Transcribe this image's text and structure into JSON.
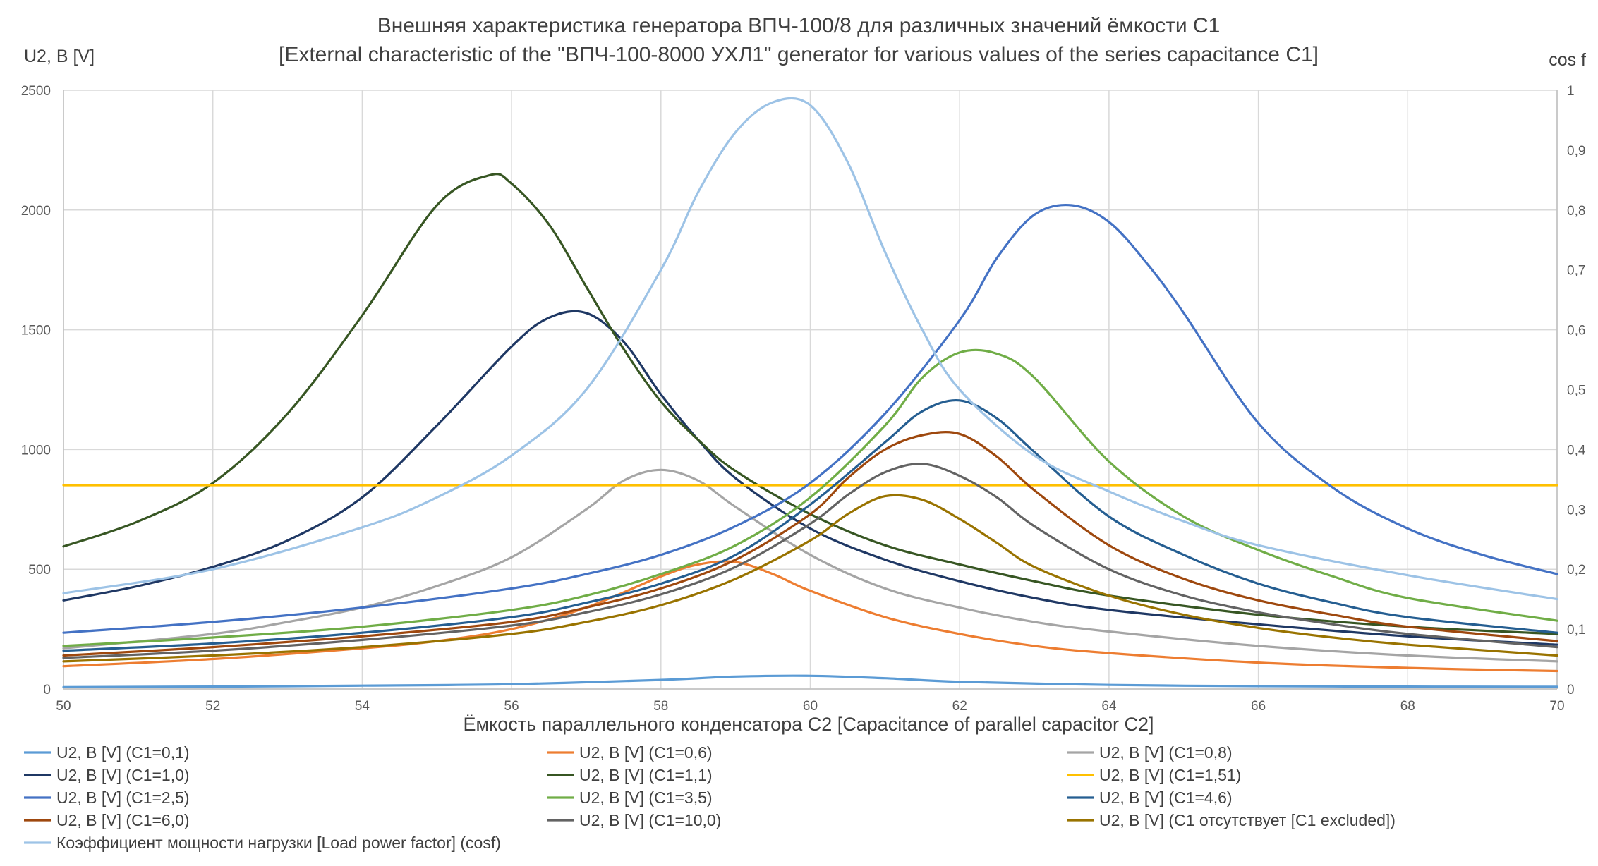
{
  "chart_data": {
    "type": "line",
    "title_line1": "Внешняя характеристика генератора ВПЧ-100/8 для различных значений ёмкости С1",
    "title_line2": "[External characteristic of the \"ВПЧ-100-8000 УХЛ1\" generator for various values of the series capacitance С1]",
    "xlabel": "Ёмкость параллельного конденсатора С2 [Capacitance of parallel capacitor C2]",
    "ylabel": "U2, В [V]",
    "y2label": "cos f",
    "xlim": [
      50,
      70
    ],
    "ylim": [
      0,
      2500
    ],
    "y2lim": [
      0,
      1
    ],
    "x_ticks": [
      "50",
      "52",
      "54",
      "56",
      "58",
      "60",
      "62",
      "64",
      "66",
      "68",
      "70"
    ],
    "y_ticks": [
      "0",
      "500",
      "1000",
      "1500",
      "2000",
      "2500"
    ],
    "y2_ticks": [
      "0",
      "0,1",
      "0,2",
      "0,3",
      "0,4",
      "0,5",
      "0,6",
      "0,7",
      "0,8",
      "0,9",
      "1"
    ],
    "grid": true,
    "legend_position": "bottom",
    "series": [
      {
        "name": "U2, В [V] (С1=0,1)",
        "color": "#5b9bd5",
        "axis": "left",
        "x": [
          50,
          52,
          54,
          56,
          58,
          59,
          60,
          61,
          62,
          64,
          66,
          68,
          70
        ],
        "y": [
          8,
          10,
          14,
          20,
          38,
          52,
          55,
          45,
          30,
          17,
          12,
          10,
          9
        ]
      },
      {
        "name": "U2, В [V] (С1=0,6)",
        "color": "#ed7d31",
        "axis": "left",
        "x": [
          50,
          52,
          54,
          55,
          56,
          57,
          58,
          58.5,
          59,
          59.5,
          60,
          61,
          62,
          63,
          64,
          66,
          68,
          70
        ],
        "y": [
          95,
          125,
          170,
          200,
          250,
          340,
          470,
          520,
          530,
          480,
          410,
          300,
          230,
          180,
          150,
          110,
          88,
          75
        ]
      },
      {
        "name": "U2, В [V] (С1=0,8)",
        "color": "#a5a5a5",
        "axis": "left",
        "x": [
          50,
          52,
          53,
          54,
          55,
          56,
          57,
          57.5,
          58,
          58.5,
          59,
          60,
          61,
          62,
          63,
          64,
          66,
          68,
          70
        ],
        "y": [
          170,
          230,
          280,
          340,
          430,
          550,
          750,
          870,
          915,
          870,
          760,
          560,
          420,
          340,
          280,
          240,
          180,
          140,
          115
        ]
      },
      {
        "name": "U2, В [V] (С1=1,0)",
        "color": "#1f3864",
        "axis": "left",
        "x": [
          50,
          51,
          52,
          53,
          54,
          55,
          56,
          56.5,
          57,
          57.5,
          58,
          58.5,
          59,
          60,
          61,
          62,
          63,
          64,
          66,
          68,
          70
        ],
        "y": [
          370,
          430,
          510,
          620,
          800,
          1100,
          1430,
          1550,
          1570,
          1450,
          1230,
          1040,
          880,
          670,
          540,
          450,
          380,
          330,
          270,
          220,
          185
        ]
      },
      {
        "name": "U2, В [V] (С1=1,1)",
        "color": "#375623",
        "axis": "left",
        "x": [
          50,
          51,
          52,
          53,
          54,
          55,
          55.7,
          56,
          56.5,
          57,
          57.5,
          58,
          58.5,
          59,
          60,
          61,
          62,
          63,
          64,
          66,
          68,
          70
        ],
        "y": [
          595,
          700,
          860,
          1150,
          1560,
          2020,
          2145,
          2110,
          1940,
          1680,
          1420,
          1200,
          1040,
          910,
          730,
          600,
          520,
          450,
          390,
          310,
          260,
          230
        ]
      },
      {
        "name": "U2, В [V] (С1=1,51)",
        "color": "#ffc000",
        "axis": "left",
        "x": [
          50,
          52,
          54,
          56,
          58,
          60,
          62,
          64,
          66,
          68,
          70
        ],
        "y": [
          851,
          851,
          851,
          851,
          851,
          851,
          851,
          851,
          851,
          851,
          851
        ]
      },
      {
        "name": "U2, В [V] (С1=2,5)",
        "color": "#4472c4",
        "axis": "left",
        "x": [
          50,
          52,
          54,
          56,
          57,
          58,
          59,
          60,
          61,
          62,
          62.5,
          63,
          63.5,
          64,
          64.5,
          65,
          66,
          67,
          68,
          69,
          70
        ],
        "y": [
          235,
          280,
          340,
          420,
          480,
          560,
          680,
          860,
          1150,
          1540,
          1800,
          1980,
          2020,
          1950,
          1780,
          1570,
          1110,
          840,
          670,
          560,
          480
        ]
      },
      {
        "name": "U2, В [V] (С1=3,5)",
        "color": "#70ad47",
        "axis": "left",
        "x": [
          50,
          52,
          54,
          56,
          57,
          58,
          59,
          60,
          61,
          61.5,
          62,
          62.5,
          63,
          64,
          65,
          66,
          67,
          68,
          70
        ],
        "y": [
          180,
          215,
          260,
          330,
          390,
          480,
          600,
          800,
          1100,
          1300,
          1405,
          1400,
          1300,
          950,
          720,
          580,
          470,
          380,
          285
        ]
      },
      {
        "name": "U2, В [V] (С1=4,6)",
        "color": "#255e91",
        "axis": "left",
        "x": [
          50,
          52,
          54,
          56,
          57,
          58,
          59,
          60,
          61,
          61.5,
          62,
          62.5,
          63,
          64,
          65,
          66,
          67,
          68,
          70
        ],
        "y": [
          160,
          190,
          235,
          300,
          360,
          440,
          560,
          770,
          1030,
          1160,
          1205,
          1130,
          990,
          720,
          560,
          440,
          360,
          300,
          235
        ]
      },
      {
        "name": "U2, В [V] (С1=6,0)",
        "color": "#9e480e",
        "axis": "left",
        "x": [
          50,
          52,
          54,
          56,
          57,
          58,
          59,
          60,
          60.5,
          61,
          61.5,
          62,
          62.5,
          63,
          64,
          65,
          66,
          67,
          68,
          70
        ],
        "y": [
          140,
          175,
          220,
          280,
          340,
          420,
          540,
          730,
          880,
          1000,
          1060,
          1065,
          970,
          830,
          600,
          460,
          370,
          310,
          260,
          200
        ]
      },
      {
        "name": "U2, В [V] (С1=10,0)",
        "color": "#636363",
        "axis": "left",
        "x": [
          50,
          52,
          54,
          56,
          57,
          58,
          59,
          60,
          60.5,
          61,
          61.5,
          62,
          62.5,
          63,
          64,
          65,
          66,
          67,
          68,
          70
        ],
        "y": [
          130,
          160,
          205,
          265,
          320,
          395,
          510,
          690,
          810,
          905,
          940,
          890,
          800,
          680,
          500,
          390,
          320,
          270,
          230,
          175
        ]
      },
      {
        "name": "U2, В [V] (С1 отсутствует [C1 excluded])",
        "color": "#997300",
        "axis": "left",
        "x": [
          50,
          52,
          54,
          56,
          57,
          58,
          59,
          60,
          60.5,
          61,
          61.5,
          62,
          62.5,
          63,
          64,
          65,
          66,
          67,
          68,
          70
        ],
        "y": [
          115,
          140,
          175,
          230,
          280,
          350,
          460,
          620,
          730,
          805,
          790,
          710,
          610,
          510,
          390,
          310,
          255,
          215,
          185,
          140
        ]
      },
      {
        "name": "Коэффициент мощности нагрузки [Load power factor] (cosf)",
        "color": "#9dc3e6",
        "axis": "right",
        "x": [
          50,
          52,
          54,
          55,
          56,
          57,
          58,
          58.5,
          59,
          59.5,
          60,
          60.5,
          61,
          61.5,
          62,
          63,
          64,
          65,
          66,
          68,
          70
        ],
        "y": [
          0.16,
          0.2,
          0.27,
          0.32,
          0.39,
          0.5,
          0.7,
          0.83,
          0.93,
          0.98,
          0.975,
          0.88,
          0.73,
          0.6,
          0.5,
          0.39,
          0.33,
          0.28,
          0.24,
          0.19,
          0.15
        ]
      }
    ]
  }
}
